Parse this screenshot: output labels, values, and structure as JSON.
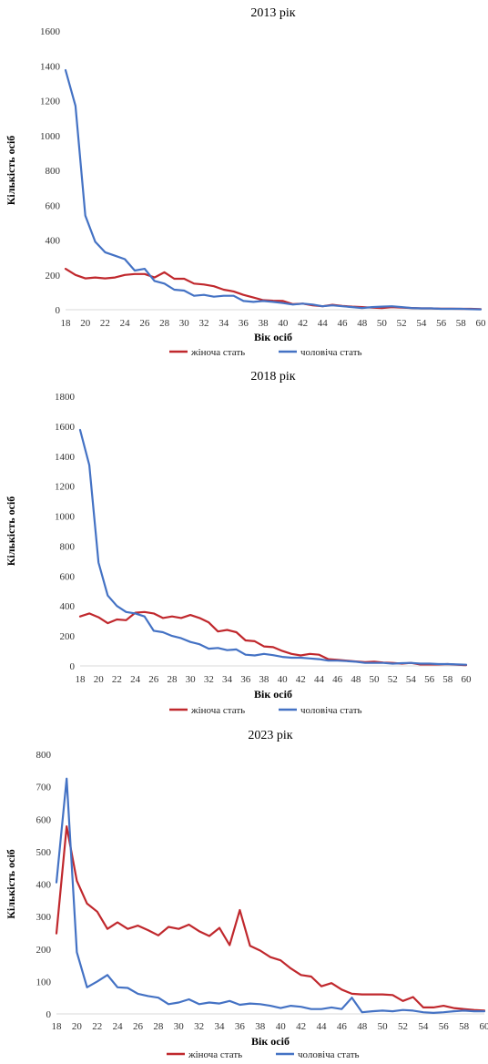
{
  "chart_data": [
    {
      "type": "line",
      "title": "2013 рік",
      "xlabel": "Вік осіб",
      "ylabel": "Кількість осіб",
      "ylim": [
        0,
        1600
      ],
      "yticks": [
        0,
        200,
        400,
        600,
        800,
        1000,
        1200,
        1400,
        1600
      ],
      "xticks": [
        18,
        20,
        22,
        24,
        26,
        28,
        30,
        32,
        34,
        36,
        38,
        40,
        42,
        44,
        46,
        48,
        50,
        52,
        54,
        56,
        58,
        60
      ],
      "grid": false,
      "legend": "bottom",
      "x": [
        18,
        19,
        20,
        21,
        22,
        23,
        24,
        25,
        26,
        27,
        28,
        29,
        30,
        31,
        32,
        33,
        34,
        35,
        36,
        37,
        38,
        39,
        40,
        41,
        42,
        43,
        44,
        45,
        46,
        47,
        48,
        49,
        50,
        51,
        52,
        53,
        54,
        55,
        56,
        57,
        58,
        59,
        60
      ],
      "series": [
        {
          "name": "жіноча стать",
          "color": "#c0282d",
          "values": [
            235,
            200,
            180,
            185,
            180,
            185,
            200,
            205,
            205,
            185,
            215,
            178,
            178,
            150,
            145,
            135,
            115,
            105,
            85,
            70,
            55,
            52,
            50,
            32,
            35,
            25,
            20,
            28,
            22,
            18,
            15,
            12,
            10,
            15,
            12,
            10,
            8,
            8,
            6,
            6,
            5,
            5,
            3
          ]
        },
        {
          "name": "чоловіча стать",
          "color": "#4472c4",
          "values": [
            1375,
            1170,
            540,
            390,
            330,
            310,
            290,
            225,
            235,
            165,
            150,
            115,
            110,
            80,
            85,
            75,
            80,
            80,
            50,
            45,
            50,
            45,
            38,
            30,
            35,
            30,
            20,
            25,
            20,
            15,
            10,
            15,
            18,
            20,
            15,
            10,
            8,
            8,
            5,
            5,
            5,
            3,
            2
          ]
        }
      ]
    },
    {
      "type": "line",
      "title": "2018 рік",
      "xlabel": "Вік осіб",
      "ylabel": "Кількість осіб",
      "ylim": [
        0,
        1800
      ],
      "yticks": [
        0,
        200,
        400,
        600,
        800,
        1000,
        1200,
        1400,
        1600,
        1800
      ],
      "xticks": [
        18,
        20,
        22,
        24,
        26,
        28,
        30,
        32,
        34,
        36,
        38,
        40,
        42,
        44,
        46,
        48,
        50,
        52,
        54,
        56,
        58,
        60
      ],
      "grid": false,
      "legend": "bottom",
      "x": [
        18,
        19,
        20,
        21,
        22,
        23,
        24,
        25,
        26,
        27,
        28,
        29,
        30,
        31,
        32,
        33,
        34,
        35,
        36,
        37,
        38,
        39,
        40,
        41,
        42,
        43,
        44,
        45,
        46,
        47,
        48,
        49,
        50,
        51,
        52,
        53,
        54,
        55,
        56,
        57,
        58,
        59,
        60
      ],
      "series": [
        {
          "name": "жіноча стать",
          "color": "#c0282d",
          "values": [
            330,
            350,
            325,
            285,
            310,
            305,
            355,
            360,
            350,
            320,
            330,
            320,
            340,
            320,
            290,
            230,
            240,
            225,
            170,
            165,
            130,
            125,
            100,
            80,
            70,
            80,
            75,
            45,
            40,
            35,
            30,
            25,
            28,
            22,
            20,
            15,
            20,
            10,
            10,
            10,
            12,
            8,
            5
          ]
        },
        {
          "name": "чоловіча стать",
          "color": "#4472c4",
          "values": [
            1575,
            1340,
            690,
            470,
            400,
            360,
            350,
            330,
            235,
            225,
            200,
            185,
            160,
            145,
            115,
            120,
            105,
            110,
            75,
            70,
            80,
            72,
            60,
            55,
            55,
            50,
            45,
            35,
            35,
            32,
            28,
            20,
            20,
            20,
            15,
            18,
            20,
            15,
            15,
            12,
            12,
            10,
            8
          ]
        }
      ]
    },
    {
      "type": "line",
      "title": "2023 рік",
      "xlabel": "Вік осіб",
      "ylabel": "Кількість осіб",
      "ylim": [
        0,
        800
      ],
      "yticks": [
        0,
        100,
        200,
        300,
        400,
        500,
        600,
        700,
        800
      ],
      "xticks": [
        18,
        20,
        22,
        24,
        26,
        28,
        30,
        32,
        34,
        36,
        38,
        40,
        42,
        44,
        46,
        48,
        50,
        52,
        54,
        56,
        58,
        60
      ],
      "grid": false,
      "legend": "bottom",
      "x": [
        18,
        19,
        20,
        21,
        22,
        23,
        24,
        25,
        26,
        27,
        28,
        29,
        30,
        31,
        32,
        33,
        34,
        35,
        36,
        37,
        38,
        39,
        40,
        41,
        42,
        43,
        44,
        45,
        46,
        47,
        48,
        49,
        50,
        51,
        52,
        53,
        54,
        55,
        56,
        57,
        58,
        59,
        60
      ],
      "series": [
        {
          "name": "жіноча стать",
          "color": "#c0282d",
          "values": [
            248,
            578,
            410,
            340,
            315,
            262,
            282,
            262,
            272,
            258,
            242,
            268,
            262,
            275,
            255,
            240,
            265,
            212,
            320,
            210,
            195,
            175,
            165,
            140,
            120,
            115,
            85,
            95,
            75,
            62,
            60,
            60,
            60,
            58,
            40,
            52,
            20,
            20,
            25,
            18,
            15,
            12,
            10
          ]
        },
        {
          "name": "чоловіча стать",
          "color": "#4472c4",
          "values": [
            405,
            725,
            190,
            82,
            100,
            120,
            82,
            80,
            62,
            55,
            50,
            30,
            35,
            45,
            30,
            35,
            32,
            40,
            28,
            32,
            30,
            25,
            18,
            25,
            22,
            15,
            15,
            20,
            15,
            50,
            5,
            8,
            10,
            8,
            12,
            10,
            5,
            3,
            5,
            8,
            10,
            8,
            8
          ]
        }
      ]
    }
  ]
}
